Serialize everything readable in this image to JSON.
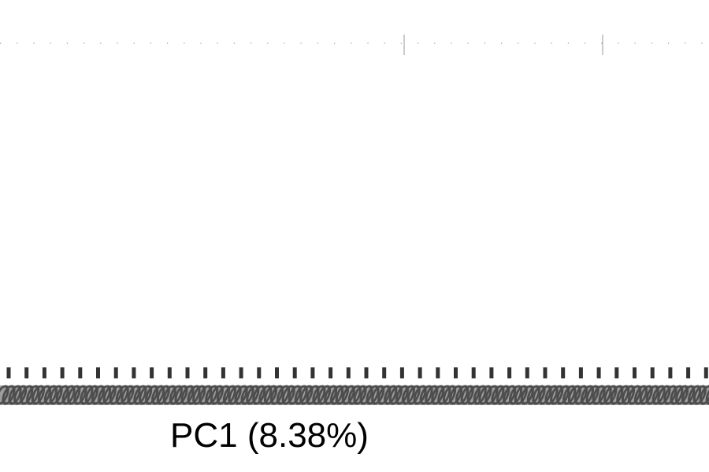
{
  "chart_data": {
    "type": "scatter",
    "xlabel": "PC1 (8.38%)",
    "ylabel": "",
    "grid": true,
    "legend": "none",
    "x_tick_count": 40,
    "x_tick_labels_illegible": true,
    "colors": {
      "tick": "#333333",
      "tick_label": "#4d4d4d",
      "grid": "#999999",
      "text": "#000000"
    }
  }
}
